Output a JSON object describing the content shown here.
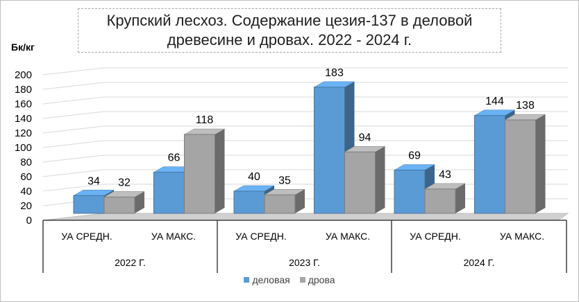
{
  "chart_data": {
    "type": "bar",
    "title_line1": "Крупский лесхоз. Содержание цезия-137 в деловой",
    "title_line2": "древесине и дровах. 2022 - 2024 г.",
    "ylabel": "Бк/кг",
    "ylim": [
      0,
      200
    ],
    "yticks": [
      "0",
      "20",
      "40",
      "60",
      "80",
      "100",
      "120",
      "140",
      "160",
      "180",
      "200"
    ],
    "groups": [
      "2022 Г.",
      "2023 Г.",
      "2024 Г."
    ],
    "categories": [
      "УА СРЕДН.",
      "УА МАКС.",
      "УА СРЕДН.",
      "УА МАКС.",
      "УА СРЕДН.",
      "УА МАКС."
    ],
    "series": [
      {
        "name": "деловая",
        "values": [
          34,
          66,
          40,
          183,
          69,
          144
        ],
        "color": "#5b9bd5"
      },
      {
        "name": "дрова",
        "values": [
          32,
          118,
          35,
          94,
          43,
          138
        ],
        "color": "#a5a5a5"
      }
    ],
    "grid": true,
    "legend_position": "bottom"
  }
}
